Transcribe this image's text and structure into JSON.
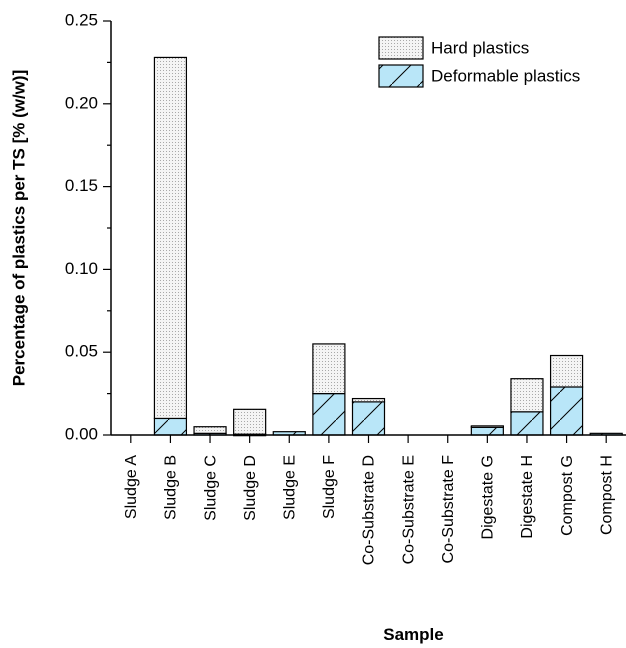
{
  "chart_data": {
    "type": "bar",
    "stacked": true,
    "xlabel": "Sample",
    "ylabel": "Percentage of plastics per TS [% (w/w)]",
    "ylim": [
      0,
      0.25
    ],
    "yticks": [
      "0.00",
      "0.05",
      "0.10",
      "0.15",
      "0.20",
      "0.25"
    ],
    "categories": [
      "Sludge A",
      "Sludge B",
      "Sludge C",
      "Sludge D",
      "Sludge E",
      "Sludge F",
      "Co-Substrate D",
      "Co-Substrate E",
      "Co-Substrate F",
      "Digestate G",
      "Digestate H",
      "Compost G",
      "Compost H"
    ],
    "series": [
      {
        "name": "Deformable plastics",
        "values": [
          0,
          0.01,
          0.001,
          0.0005,
          0.002,
          0.025,
          0.02,
          0,
          0,
          0.005,
          0.014,
          0.029,
          0.001
        ],
        "color": "#b9e6f8"
      },
      {
        "name": "Hard plastics",
        "values": [
          0,
          0.218,
          0.004,
          0.015,
          0,
          0.03,
          0.002,
          0,
          0,
          0.0005,
          0.02,
          0.019,
          0
        ],
        "color": "#f2f2f2"
      }
    ],
    "legend_position": "top-right",
    "grid": false
  }
}
